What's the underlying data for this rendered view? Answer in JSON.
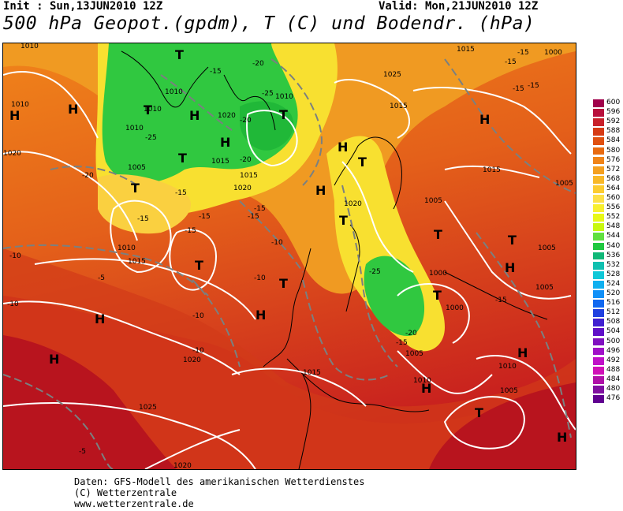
{
  "header": {
    "init": "Init : Sun,13JUN2010 12Z",
    "valid": "Valid: Mon,21JUN2010 12Z",
    "title": "500 hPa Geopot.(gpdm), T (C) und Bodendr. (hPa)"
  },
  "map": {
    "pressure_labels": [
      "1010",
      "1015",
      "1025",
      "1015",
      "1000",
      "1010",
      "1010",
      "1010",
      "1020",
      "1015",
      "1020",
      "1005",
      "1010",
      "1015",
      "1020",
      "1015",
      "1020",
      "1005",
      "1000",
      "1000",
      "1005",
      "1015",
      "1005",
      "1005",
      "1010",
      "1005",
      "1010",
      "1010",
      "1005",
      "1025",
      "1020",
      "1015",
      "1020",
      "1010"
    ],
    "temperature_labels": [
      "-15",
      "-15",
      "-20",
      "-25",
      "-20",
      "-25",
      "-20",
      "-15",
      "-15",
      "-15",
      "-15",
      "-10",
      "-15",
      "-15",
      "-10",
      "-10",
      "-10",
      "-10",
      "-10",
      "-5",
      "-5",
      "-25",
      "-20",
      "-15",
      "-15",
      "-15",
      "-15",
      "-15",
      "-20"
    ],
    "highs": [
      "H",
      "H",
      "H",
      "H",
      "H",
      "H",
      "H",
      "H",
      "H",
      "H",
      "H",
      "H",
      "H",
      "H"
    ],
    "lows": [
      "T",
      "T",
      "T",
      "T",
      "T",
      "T",
      "T",
      "T",
      "T",
      "T",
      "T",
      "T",
      "T"
    ]
  },
  "legend": {
    "units": "gpdm",
    "values": [
      "600",
      "596",
      "592",
      "588",
      "584",
      "580",
      "576",
      "572",
      "568",
      "564",
      "560",
      "556",
      "552",
      "548",
      "544",
      "540",
      "536",
      "532",
      "528",
      "524",
      "520",
      "516",
      "512",
      "508",
      "504",
      "500",
      "496",
      "492",
      "488",
      "484",
      "480",
      "476"
    ],
    "colors": [
      "#a0004a",
      "#b8103c",
      "#c8202a",
      "#d63a14",
      "#e05010",
      "#e86a10",
      "#f08418",
      "#f4a020",
      "#f8b828",
      "#fccc30",
      "#fde048",
      "#f8f030",
      "#e8f818",
      "#c8f810",
      "#60e040",
      "#20c840",
      "#10b878",
      "#10c0b0",
      "#10c8d8",
      "#10b0f0",
      "#1090f8",
      "#1068f0",
      "#2040e0",
      "#4020d0",
      "#6010c8",
      "#8010c0",
      "#a010c8",
      "#c010c8",
      "#d010b8",
      "#b010a8",
      "#8010a0",
      "#600090"
    ]
  },
  "footer": {
    "line1": "Daten: GFS-Modell des amerikanischen Wetterdienstes",
    "line2": "(C) Wetterzentrale",
    "line3": "www.wetterzentrale.de"
  }
}
